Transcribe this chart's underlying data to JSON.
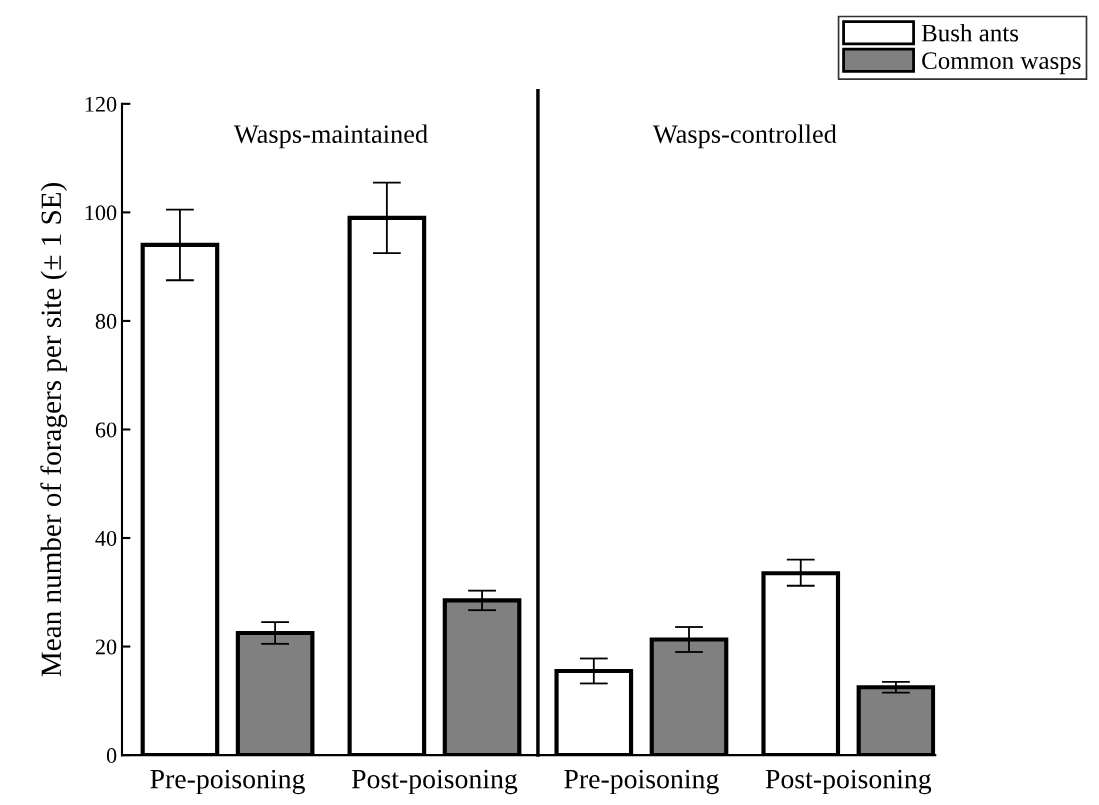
{
  "chart_data": {
    "type": "bar",
    "ylabel": "Mean number of foragers per site (± 1 SE)",
    "categories": [
      "Pre-poisoning",
      "Post-poisoning",
      "Pre-poisoning",
      "Post-poisoning"
    ],
    "series": [
      {
        "name": "Bush ants",
        "color": "#ffffff",
        "values": [
          94,
          99,
          15.5,
          33.5
        ],
        "errors": [
          [
            87.5,
            100.5
          ],
          [
            92.5,
            105.5
          ],
          [
            13.2,
            17.8
          ],
          [
            31.2,
            36
          ]
        ]
      },
      {
        "name": "Common wasps",
        "color": "#808080",
        "values": [
          22.5,
          28.5,
          21.3,
          12.5
        ],
        "errors": [
          [
            20.5,
            24.5
          ],
          [
            26.7,
            30.3
          ],
          [
            19,
            23.6
          ],
          [
            11.5,
            13.5
          ]
        ]
      }
    ],
    "annotations": [
      "Wasps-maintained",
      "Wasps-controlled"
    ],
    "ylim": [
      0,
      120
    ],
    "yticks": [
      0,
      20,
      40,
      60,
      80,
      100,
      120
    ],
    "grid": false,
    "legend": "top right"
  }
}
